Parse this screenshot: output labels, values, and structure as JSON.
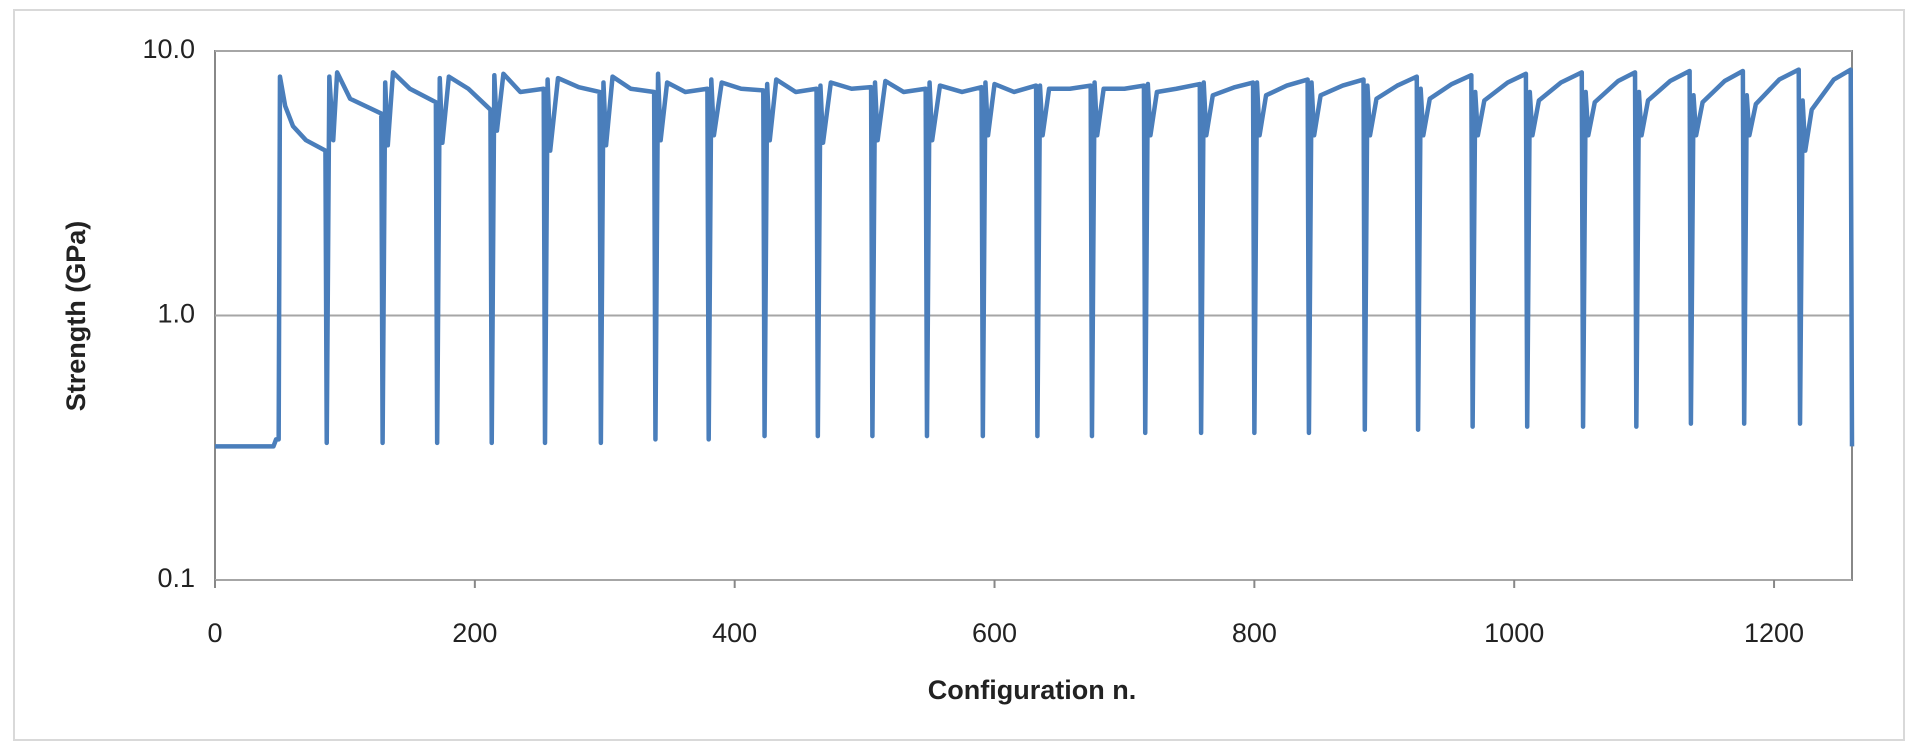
{
  "chart_data": {
    "type": "line",
    "xlabel": "Configuration n.",
    "ylabel": "Strength (GPa)",
    "color": "#4a7ebb",
    "log_y": true,
    "grid": true,
    "xlim": [
      0,
      1260
    ],
    "xticks": [
      0,
      200,
      400,
      600,
      800,
      1000,
      1200
    ],
    "ylim": [
      0.1,
      10
    ],
    "yticks": [
      0.1,
      {
        "value": 1,
        "label": "1.0"
      },
      {
        "value": 10,
        "label": "10.0"
      }
    ],
    "x": [
      0,
      45,
      47,
      49,
      50,
      54,
      60,
      70,
      85,
      86,
      88,
      91,
      94,
      104,
      128,
      129,
      131,
      133,
      137,
      150,
      170,
      171,
      173,
      175,
      180,
      195,
      212,
      213,
      215,
      217,
      222,
      235,
      253,
      254,
      256,
      258,
      264,
      280,
      296,
      297,
      299,
      301,
      306,
      320,
      338,
      339,
      341,
      343,
      348,
      362,
      379,
      380,
      382,
      384,
      390,
      405,
      422,
      423,
      425,
      427,
      432,
      447,
      463,
      464,
      466,
      468,
      474,
      490,
      505,
      506,
      508,
      510,
      516,
      530,
      547,
      548,
      550,
      552,
      558,
      575,
      590,
      591,
      593,
      595,
      600,
      615,
      632,
      633,
      635,
      637,
      642,
      658,
      674,
      675,
      677,
      679,
      684,
      700,
      715,
      716,
      718,
      720,
      725,
      740,
      758,
      759,
      761,
      763,
      768,
      785,
      799,
      800,
      802,
      804,
      809,
      825,
      841,
      842,
      844,
      846,
      851,
      868,
      884,
      885,
      887,
      889,
      894,
      910,
      925,
      926,
      928,
      930,
      935,
      952,
      967,
      968,
      970,
      972,
      977,
      995,
      1009,
      1010,
      1012,
      1014,
      1019,
      1036,
      1052,
      1053,
      1055,
      1057,
      1062,
      1080,
      1093,
      1094,
      1096,
      1098,
      1103,
      1120,
      1135,
      1136,
      1138,
      1140,
      1145,
      1162,
      1176,
      1177,
      1179,
      1181,
      1186,
      1204,
      1219,
      1220,
      1222,
      1224,
      1229,
      1246,
      1259,
      1260
    ],
    "values": [
      0.32,
      0.32,
      0.34,
      0.34,
      8.0,
      6.2,
      5.2,
      4.6,
      4.2,
      0.33,
      8.0,
      4.6,
      8.3,
      6.6,
      5.8,
      0.33,
      7.6,
      4.4,
      8.3,
      7.2,
      6.4,
      0.33,
      7.9,
      4.5,
      8.0,
      7.2,
      6.0,
      0.33,
      8.1,
      5.0,
      8.2,
      7.0,
      7.2,
      0.33,
      7.8,
      4.2,
      7.9,
      7.3,
      7.0,
      0.33,
      7.6,
      4.4,
      8.0,
      7.2,
      7.0,
      0.34,
      8.2,
      4.6,
      7.6,
      7.0,
      7.2,
      0.34,
      7.8,
      4.8,
      7.6,
      7.2,
      7.1,
      0.35,
      7.5,
      4.6,
      7.8,
      7.0,
      7.2,
      0.35,
      7.4,
      4.5,
      7.6,
      7.2,
      7.3,
      0.35,
      7.6,
      4.6,
      7.7,
      7.0,
      7.2,
      0.35,
      7.6,
      4.6,
      7.4,
      7.0,
      7.3,
      0.35,
      7.6,
      4.8,
      7.5,
      7.0,
      7.4,
      0.35,
      7.4,
      4.8,
      7.2,
      7.2,
      7.4,
      0.35,
      7.6,
      4.8,
      7.2,
      7.2,
      7.4,
      0.36,
      7.5,
      4.8,
      7.0,
      7.2,
      7.5,
      0.36,
      7.6,
      4.8,
      6.8,
      7.3,
      7.6,
      0.36,
      7.6,
      4.8,
      6.8,
      7.4,
      7.8,
      0.36,
      7.6,
      4.8,
      6.8,
      7.4,
      7.8,
      0.37,
      7.4,
      4.8,
      6.6,
      7.4,
      8.0,
      0.37,
      7.2,
      4.8,
      6.6,
      7.5,
      8.1,
      0.38,
      7.0,
      4.8,
      6.5,
      7.6,
      8.2,
      0.38,
      7.0,
      4.8,
      6.5,
      7.6,
      8.3,
      0.38,
      7.0,
      4.8,
      6.4,
      7.7,
      8.3,
      0.38,
      7.0,
      4.8,
      6.5,
      7.7,
      8.4,
      0.39,
      6.8,
      4.8,
      6.4,
      7.7,
      8.4,
      0.39,
      6.8,
      4.8,
      6.3,
      7.8,
      8.5,
      0.39,
      6.5,
      4.2,
      6.0,
      7.8,
      8.5,
      0.32
    ]
  }
}
